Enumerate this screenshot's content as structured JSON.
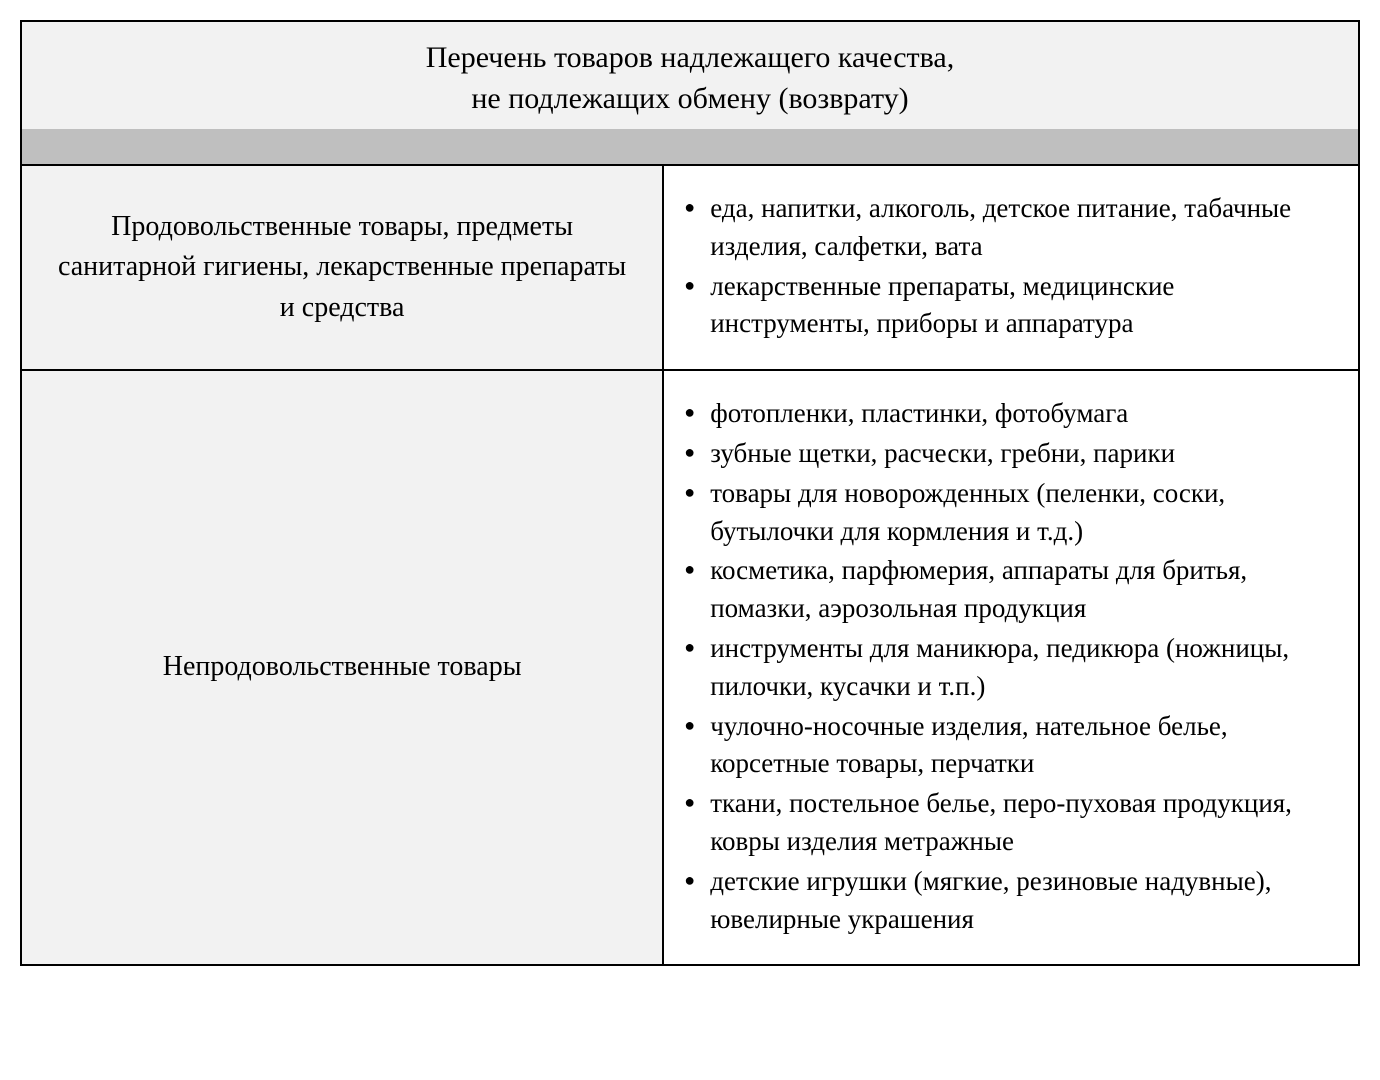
{
  "table": {
    "title_line1": "Перечень товаров надлежащего качества,",
    "title_line2": "не подлежащих обмену (возврату)",
    "header_bg": "#f2f2f2",
    "gray_bar_bg": "#bfbfbf",
    "category_bg": "#f2f2f2",
    "items_bg": "#ffffff",
    "border_color": "#000000",
    "title_fontsize": 30,
    "category_fontsize": 28,
    "items_fontsize": 27,
    "font_family": "Times New Roman",
    "rows": [
      {
        "category": "Продовольственные товары, предметы санитарной гигиены, лекарственные препараты и средства",
        "items": [
          "еда, напитки, алкоголь, детское питание, табачные изделия, салфетки, вата",
          "лекарственные препараты, медицинские инструменты, приборы и аппаратура"
        ]
      },
      {
        "category": "Непродовольственные товары",
        "items": [
          "фотопленки, пластинки, фотобумага",
          "зубные щетки, расчески, гребни, парики",
          "товары для новорожденных (пеленки, соски, бутылочки для кормления и т.д.)",
          "косметика, парфюмерия, аппараты для бритья, помазки, аэрозольная продукция",
          "инструменты для маникюра, педикюра (ножницы, пилочки, кусачки и т.п.)",
          "чулочно-носочные изделия, нательное белье, корсетные товары, перчатки",
          "ткани, постельное белье, перо-пуховая продукция, ковры изделия метражные",
          "детские игрушки (мягкие, резиновые надувные), ювелирные украшения"
        ]
      }
    ]
  }
}
